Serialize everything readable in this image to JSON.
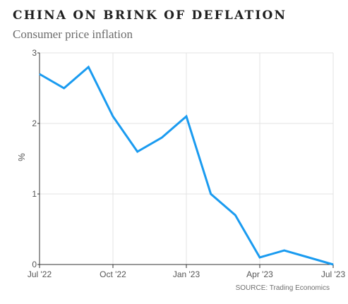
{
  "header": {
    "title": "CHINA ON BRINK OF DEFLATION",
    "subtitle": "Consumer price inflation"
  },
  "footer": {
    "source": "SOURCE: Trading Economics"
  },
  "colors": {
    "line": "#1a9bf0",
    "grid": "#e3e3e3",
    "axis": "#333333"
  },
  "chart_data": {
    "type": "line",
    "title": "CHINA ON BRINK OF DEFLATION",
    "subtitle": "Consumer price inflation",
    "xlabel": "",
    "ylabel": "%",
    "ylim": [
      0,
      3
    ],
    "yticks": [
      0,
      1,
      2,
      3
    ],
    "xlim": [
      "2022-07",
      "2023-07"
    ],
    "xticks": [
      {
        "x": "2022-07",
        "label": "Jul '22"
      },
      {
        "x": "2022-10",
        "label": "Oct '22"
      },
      {
        "x": "2023-01",
        "label": "Jan '23"
      },
      {
        "x": "2023-04",
        "label": "Apr '23"
      },
      {
        "x": "2023-07",
        "label": "Jul '23"
      }
    ],
    "grid": true,
    "series": [
      {
        "x": [
          "2022-07",
          "2022-08",
          "2022-09",
          "2022-10",
          "2022-11",
          "2022-12",
          "2023-01",
          "2023-02",
          "2023-03",
          "2023-04",
          "2023-05",
          "2023-06",
          "2023-07"
        ],
        "values": [
          2.7,
          2.5,
          2.8,
          2.1,
          1.6,
          1.8,
          2.1,
          1.0,
          0.7,
          0.1,
          0.2,
          0.1,
          0.0
        ]
      }
    ]
  }
}
